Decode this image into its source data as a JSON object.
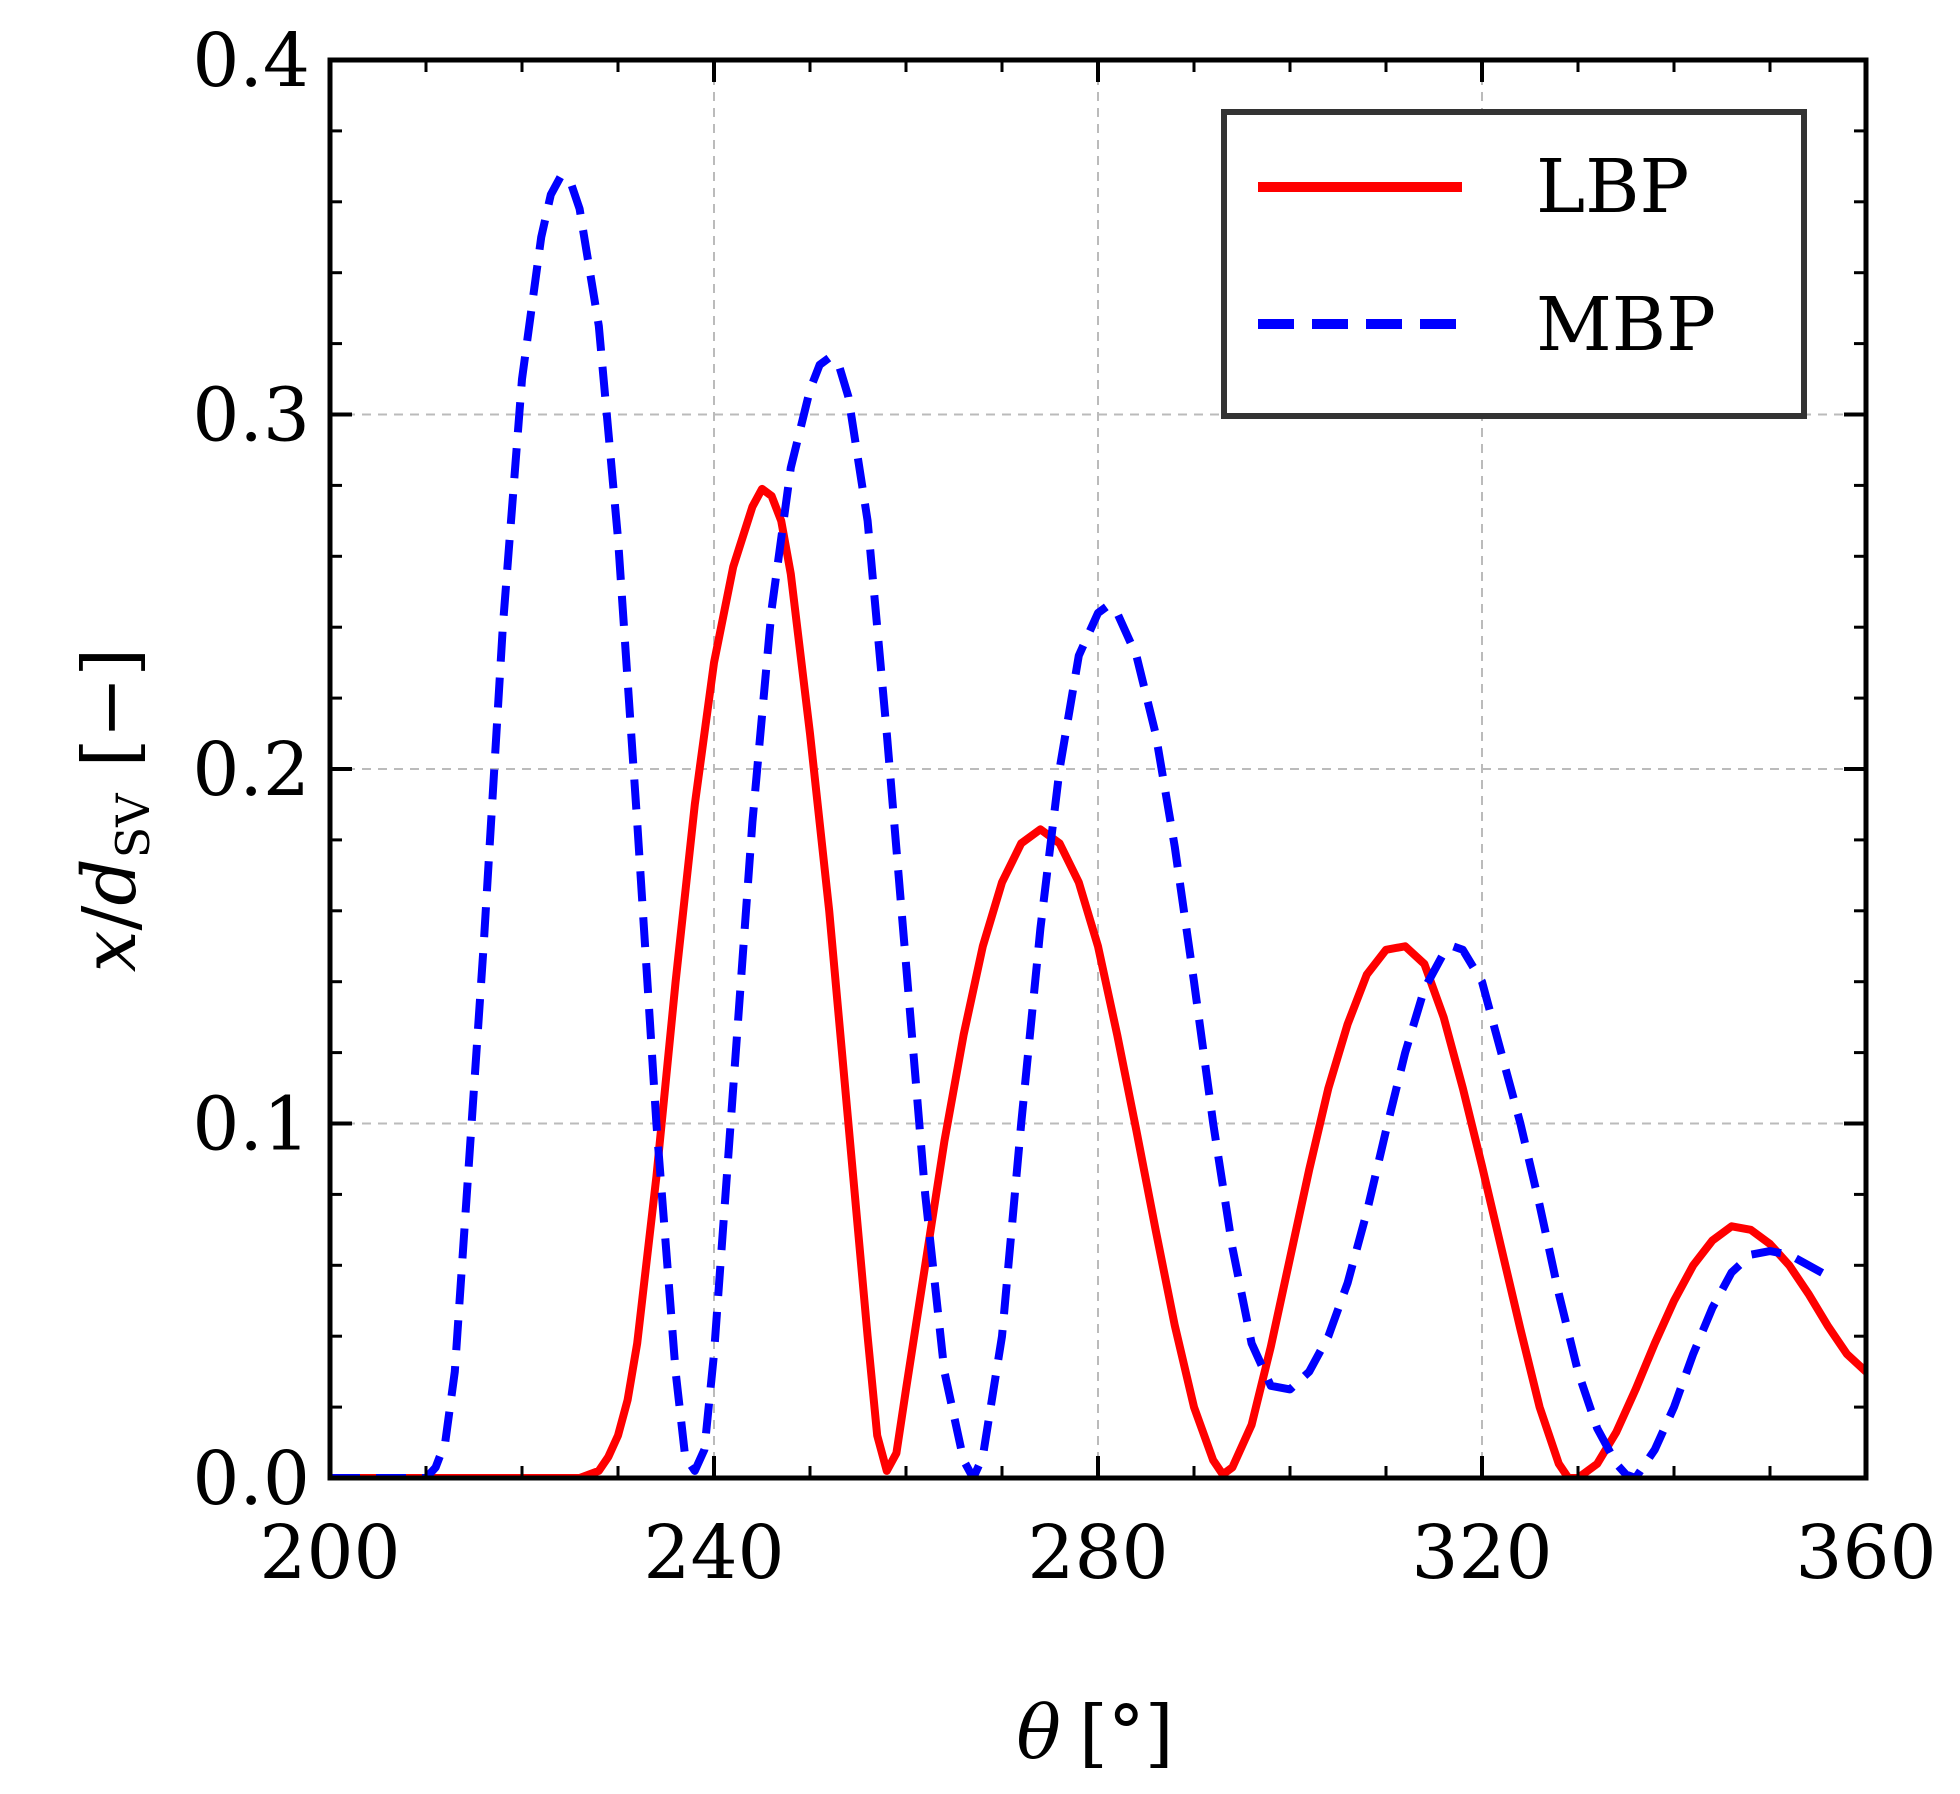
{
  "chart_data": {
    "type": "line",
    "title": "",
    "xlabel": {
      "symbol": "θ",
      "unit": "[°]"
    },
    "ylabel": {
      "var": "x",
      "slash": "/",
      "denom": "d",
      "sub": "SV",
      "unit": "[−]"
    },
    "xlim": [
      200,
      360
    ],
    "ylim": [
      0,
      0.4
    ],
    "xticks": [
      200,
      240,
      280,
      320,
      360
    ],
    "xtick_labels": [
      "200",
      "240",
      "280",
      "320",
      "360"
    ],
    "yticks": [
      0.0,
      0.1,
      0.2,
      0.3,
      0.4
    ],
    "ytick_labels": [
      "0.0",
      "0.1",
      "0.2",
      "0.3",
      "0.4"
    ],
    "grid": true,
    "legend_position": "top-right",
    "series": [
      {
        "name": "LBP",
        "color": "#ff0000",
        "style": "solid",
        "points": [
          [
            200,
            0
          ],
          [
            226,
            0
          ],
          [
            228,
            0.002
          ],
          [
            229,
            0.006
          ],
          [
            230,
            0.012
          ],
          [
            231,
            0.022
          ],
          [
            232,
            0.038
          ],
          [
            234,
            0.085
          ],
          [
            236,
            0.14
          ],
          [
            238,
            0.19
          ],
          [
            240,
            0.23
          ],
          [
            242,
            0.257
          ],
          [
            244,
            0.274
          ],
          [
            245,
            0.279
          ],
          [
            246,
            0.277
          ],
          [
            247,
            0.27
          ],
          [
            248,
            0.255
          ],
          [
            250,
            0.21
          ],
          [
            252,
            0.16
          ],
          [
            254,
            0.1
          ],
          [
            256,
            0.04
          ],
          [
            257,
            0.012
          ],
          [
            258,
            0.002
          ],
          [
            259,
            0.007
          ],
          [
            260,
            0.025
          ],
          [
            262,
            0.06
          ],
          [
            264,
            0.095
          ],
          [
            266,
            0.125
          ],
          [
            268,
            0.15
          ],
          [
            270,
            0.168
          ],
          [
            272,
            0.179
          ],
          [
            274,
            0.183
          ],
          [
            276,
            0.179
          ],
          [
            278,
            0.168
          ],
          [
            280,
            0.15
          ],
          [
            282,
            0.125
          ],
          [
            284,
            0.098
          ],
          [
            286,
            0.07
          ],
          [
            288,
            0.043
          ],
          [
            290,
            0.02
          ],
          [
            292,
            0.005
          ],
          [
            293,
            0.001
          ],
          [
            294,
            0.003
          ],
          [
            296,
            0.015
          ],
          [
            298,
            0.037
          ],
          [
            300,
            0.062
          ],
          [
            302,
            0.087
          ],
          [
            304,
            0.11
          ],
          [
            306,
            0.128
          ],
          [
            308,
            0.142
          ],
          [
            310,
            0.149
          ],
          [
            312,
            0.15
          ],
          [
            314,
            0.145
          ],
          [
            316,
            0.13
          ],
          [
            318,
            0.11
          ],
          [
            320,
            0.088
          ],
          [
            322,
            0.065
          ],
          [
            324,
            0.042
          ],
          [
            326,
            0.02
          ],
          [
            328,
            0.004
          ],
          [
            329,
            0.0
          ],
          [
            330,
            0.0
          ],
          [
            332,
            0.004
          ],
          [
            334,
            0.013
          ],
          [
            336,
            0.025
          ],
          [
            338,
            0.038
          ],
          [
            340,
            0.05
          ],
          [
            342,
            0.06
          ],
          [
            344,
            0.067
          ],
          [
            346,
            0.071
          ],
          [
            348,
            0.07
          ],
          [
            350,
            0.066
          ],
          [
            352,
            0.06
          ],
          [
            354,
            0.052
          ],
          [
            356,
            0.043
          ],
          [
            358,
            0.035
          ],
          [
            360,
            0.03
          ]
        ]
      },
      {
        "name": "MBP",
        "color": "#0000ff",
        "style": "dashed",
        "points": [
          [
            200,
            0
          ],
          [
            210,
            0
          ],
          [
            211,
            0.003
          ],
          [
            212,
            0.01
          ],
          [
            213,
            0.03
          ],
          [
            214,
            0.07
          ],
          [
            216,
            0.15
          ],
          [
            218,
            0.24
          ],
          [
            220,
            0.31
          ],
          [
            222,
            0.35
          ],
          [
            223,
            0.362
          ],
          [
            224,
            0.367
          ],
          [
            225,
            0.366
          ],
          [
            226,
            0.358
          ],
          [
            228,
            0.325
          ],
          [
            230,
            0.265
          ],
          [
            232,
            0.185
          ],
          [
            234,
            0.1
          ],
          [
            236,
            0.03
          ],
          [
            237,
            0.006
          ],
          [
            238,
            0.002
          ],
          [
            239,
            0.008
          ],
          [
            240,
            0.035
          ],
          [
            242,
            0.11
          ],
          [
            244,
            0.185
          ],
          [
            246,
            0.245
          ],
          [
            248,
            0.285
          ],
          [
            250,
            0.307
          ],
          [
            251,
            0.314
          ],
          [
            252,
            0.316
          ],
          [
            253,
            0.314
          ],
          [
            254,
            0.305
          ],
          [
            256,
            0.27
          ],
          [
            258,
            0.21
          ],
          [
            260,
            0.145
          ],
          [
            262,
            0.08
          ],
          [
            264,
            0.03
          ],
          [
            266,
            0.005
          ],
          [
            267,
            0.0
          ],
          [
            268,
            0.006
          ],
          [
            270,
            0.04
          ],
          [
            272,
            0.1
          ],
          [
            274,
            0.155
          ],
          [
            276,
            0.2
          ],
          [
            278,
            0.232
          ],
          [
            280,
            0.244
          ],
          [
            281,
            0.246
          ],
          [
            282,
            0.244
          ],
          [
            284,
            0.232
          ],
          [
            286,
            0.21
          ],
          [
            288,
            0.178
          ],
          [
            290,
            0.14
          ],
          [
            292,
            0.1
          ],
          [
            294,
            0.065
          ],
          [
            296,
            0.038
          ],
          [
            298,
            0.026
          ],
          [
            300,
            0.025
          ],
          [
            302,
            0.03
          ],
          [
            304,
            0.04
          ],
          [
            306,
            0.055
          ],
          [
            308,
            0.075
          ],
          [
            310,
            0.098
          ],
          [
            312,
            0.12
          ],
          [
            314,
            0.138
          ],
          [
            316,
            0.148
          ],
          [
            317,
            0.15
          ],
          [
            318,
            0.149
          ],
          [
            320,
            0.14
          ],
          [
            322,
            0.12
          ],
          [
            324,
            0.1
          ],
          [
            326,
            0.077
          ],
          [
            328,
            0.052
          ],
          [
            330,
            0.03
          ],
          [
            332,
            0.014
          ],
          [
            334,
            0.004
          ],
          [
            335,
            0.001
          ],
          [
            336,
            0.0
          ],
          [
            338,
            0.008
          ],
          [
            340,
            0.02
          ],
          [
            342,
            0.035
          ],
          [
            344,
            0.048
          ],
          [
            346,
            0.058
          ],
          [
            348,
            0.063
          ],
          [
            350,
            0.064
          ],
          [
            352,
            0.063
          ],
          [
            354,
            0.06
          ],
          [
            356,
            0.057
          ]
        ]
      }
    ]
  }
}
